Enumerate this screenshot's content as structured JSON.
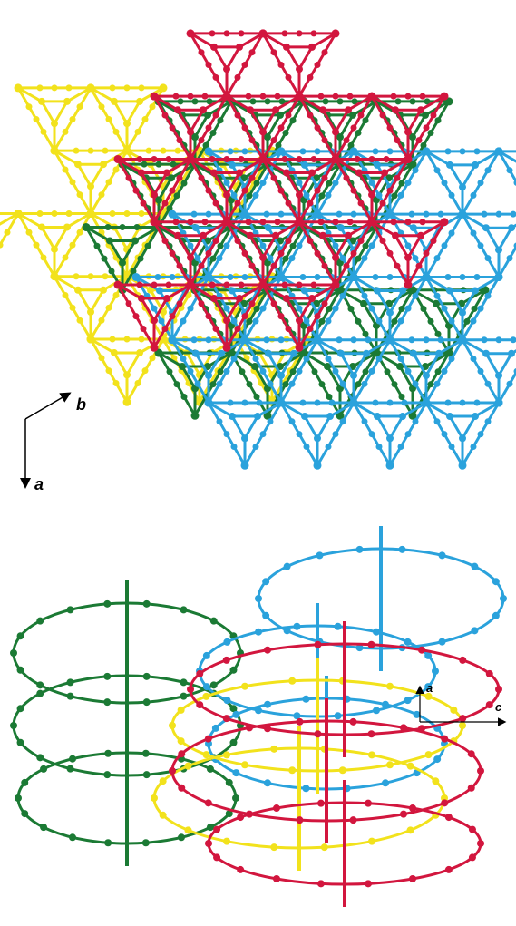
{
  "panels": [
    {
      "axis_labels": [
        "b",
        "a"
      ]
    },
    {
      "axis_labels": [
        "a",
        "c"
      ]
    }
  ]
}
